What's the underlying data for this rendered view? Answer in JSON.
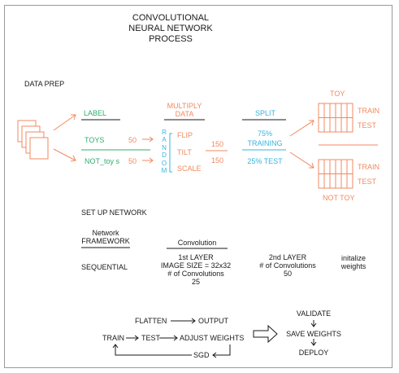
{
  "title": {
    "line1": "CONVOLUTIONAL",
    "line2": "NEURAL NETWORK",
    "line3": "PROCESS"
  },
  "data_prep": {
    "heading": "DATA PREP",
    "label": "LABEL",
    "toys": "TOYS",
    "toys_count": "50",
    "not_toys": "NOT_toy s",
    "not_toys_count": "50",
    "multiply_line1": "MULTIPLY",
    "multiply_line2": "DATA",
    "random_letters": [
      "R",
      "A",
      "N",
      "D",
      "O",
      "M"
    ],
    "flip": "FLIP",
    "tilt": "TILT",
    "scale": "SCALE",
    "total_top": "150",
    "total_bottom": "150",
    "split": "SPLIT",
    "training_pct": "75%",
    "training": "TRAINING",
    "test_pct": "25% TEST",
    "toy": "TOY",
    "not_toy": "NOT TOY",
    "train": "TRAIN",
    "test": "TEST"
  },
  "setup": {
    "heading": "SET UP NETWORK",
    "network_line1": "Network",
    "network_line2": "FRAMEWORK",
    "sequential": "SEQUENTIAL",
    "convolution": "Convolution",
    "first_layer": "1st LAYER",
    "image_size": "IMAGE SIZE = 32x32",
    "num_conv_1": "# of Convolutions",
    "num_conv_1_val": "25",
    "second_layer": "2nd LAYER",
    "num_conv_2": "# of Convolutions",
    "num_conv_2_val": "50",
    "init_line1": "initalize",
    "init_line2": "weights"
  },
  "flow": {
    "flatten": "FLATTEN",
    "output": "OUTPUT",
    "train": "TRAIN",
    "test": "TEST",
    "adjust_weights": "ADJUST WEIGHTS",
    "sgd": "SGD",
    "validate": "VALIDATE",
    "save_weights": "SAVE WEIGHTS",
    "deploy": "DEPLOY"
  },
  "colors": {
    "orange": "#f08a60",
    "green": "#2fae6e",
    "blue": "#35b4e0",
    "black": "#1a1a1a"
  }
}
